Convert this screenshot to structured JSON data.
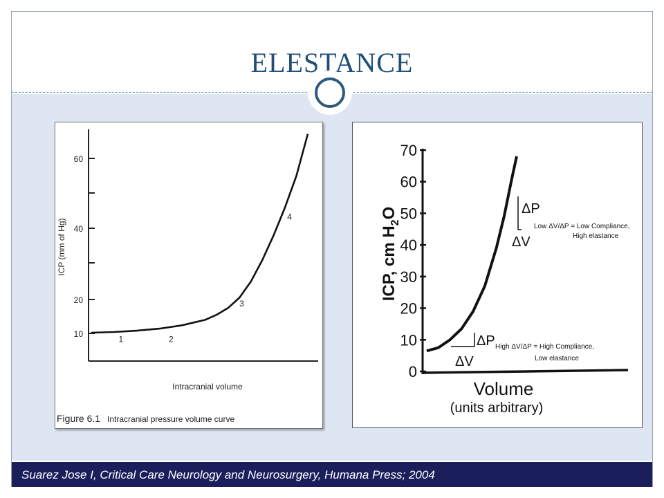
{
  "slide": {
    "title": "ELESTANCE",
    "citation": "Suarez Jose I, Critical Care Neurology and Neurosurgery, Humana Press; 2004"
  },
  "colors": {
    "title": "#1f4e79",
    "footer_bg": "#1a1f5c",
    "content_bg": "#dfe6f3",
    "ring": "#2e5a7e"
  },
  "chart_data": [
    {
      "type": "line",
      "title": "Figure 6.1",
      "subtitle": "Intracranial pressure volume curve",
      "xlabel": "Intracranial volume",
      "ylabel": "ICP (mm of Hg)",
      "y_ticks": [
        10,
        20,
        40,
        60
      ],
      "ylim": [
        5,
        70
      ],
      "xlim": [
        0,
        100
      ],
      "grid": false,
      "series": [
        {
          "x": [
            0,
            10,
            20,
            30,
            40,
            50,
            55,
            60,
            65,
            70,
            75,
            80,
            85,
            90,
            95
          ],
          "values": [
            10.2,
            10.4,
            10.8,
            11.4,
            12.4,
            14,
            15.5,
            17.5,
            20.5,
            25,
            31,
            38,
            46,
            55,
            67
          ]
        }
      ],
      "annotations": [
        {
          "text": "1",
          "x": 13,
          "y": 7.5
        },
        {
          "text": "2",
          "x": 35,
          "y": 7.5
        },
        {
          "text": "3",
          "x": 66,
          "y": 18
        },
        {
          "text": "4",
          "x": 87,
          "y": 42.5
        }
      ]
    },
    {
      "type": "line",
      "title": "",
      "xlabel": "Volume",
      "xlabel_sub": "(units arbitrary)",
      "ylabel": "ICP, cm H",
      "ylabel_subscript": "2",
      "ylabel_suffix": "O",
      "y_ticks": [
        0,
        10,
        20,
        30,
        40,
        50,
        60,
        70
      ],
      "ylim": [
        0,
        72
      ],
      "xlim": [
        0,
        100
      ],
      "grid": false,
      "series": [
        {
          "x": [
            0,
            6,
            12,
            18,
            24,
            30,
            36,
            40,
            44,
            46.5
          ],
          "values": [
            6.5,
            7.5,
            10,
            13.5,
            19,
            27,
            39,
            49,
            61,
            68
          ]
        }
      ],
      "annotations": [
        {
          "delta_p": "ΔP",
          "delta_v": "ΔV",
          "high": "Low ΔV",
          "low": "ΔP = Low Compliance,",
          "line2": "High elastance"
        },
        {
          "delta_p": "ΔP",
          "delta_v": "ΔV",
          "high": "High ΔV",
          "low": "ΔP = High Compliance,",
          "line2": "Low elastance"
        }
      ]
    }
  ]
}
